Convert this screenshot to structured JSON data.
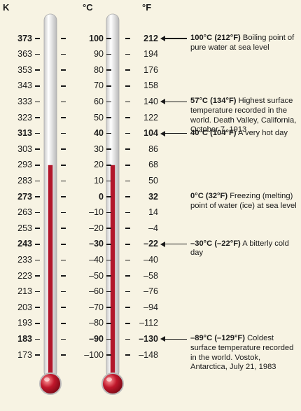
{
  "headers": {
    "kelvin": "K",
    "celsius": "°C",
    "fahrenheit": "°F"
  },
  "colors": {
    "background": "#f7f3e3",
    "liquid": "#b2172b",
    "tube": "#e6e6e6",
    "text": "#1a1a1a"
  },
  "liquid_level_kelvin": 293,
  "rows": [
    {
      "k": "373",
      "c": "100",
      "f": "212",
      "bold": true
    },
    {
      "k": "363",
      "c": "90",
      "f": "194",
      "bold": false
    },
    {
      "k": "353",
      "c": "80",
      "f": "176",
      "bold": false
    },
    {
      "k": "343",
      "c": "70",
      "f": "158",
      "bold": false
    },
    {
      "k": "333",
      "c": "60",
      "f": "140",
      "bold": false
    },
    {
      "k": "323",
      "c": "50",
      "f": "122",
      "bold": false
    },
    {
      "k": "313",
      "c": "40",
      "f": "104",
      "bold": true
    },
    {
      "k": "303",
      "c": "30",
      "f": "86",
      "bold": false
    },
    {
      "k": "293",
      "c": "20",
      "f": "68",
      "bold": false
    },
    {
      "k": "283",
      "c": "10",
      "f": "50",
      "bold": false
    },
    {
      "k": "273",
      "c": "0",
      "f": "32",
      "bold": true
    },
    {
      "k": "263",
      "c": "–10",
      "f": "14",
      "bold": false
    },
    {
      "k": "253",
      "c": "–20",
      "f": "–4",
      "bold": false
    },
    {
      "k": "243",
      "c": "–30",
      "f": "–22",
      "bold": true
    },
    {
      "k": "233",
      "c": "–40",
      "f": "–40",
      "bold": false
    },
    {
      "k": "223",
      "c": "–50",
      "f": "–58",
      "bold": false
    },
    {
      "k": "213",
      "c": "–60",
      "f": "–76",
      "bold": false
    },
    {
      "k": "203",
      "c": "–70",
      "f": "–94",
      "bold": false
    },
    {
      "k": "193",
      "c": "–80",
      "f": "–112",
      "bold": false
    },
    {
      "k": "183",
      "c": "–90",
      "f": "–130",
      "bold": true
    },
    {
      "k": "173",
      "c": "–100",
      "f": "–148",
      "bold": false
    }
  ],
  "annotations": [
    {
      "row": 0,
      "arrow": true,
      "head": "100°C (212°F)",
      "body": " Boiling point of pure water at sea level"
    },
    {
      "row": 4,
      "arrow": true,
      "head": "57°C (134°F)",
      "body": " Highest surface temperature recorded in the world. Death Valley, California, October 7, 1913"
    },
    {
      "row": 6,
      "arrow": true,
      "head": "40°C (104°F)",
      "body": " A very hot day"
    },
    {
      "row": 10,
      "arrow": false,
      "head": "0°C (32°F)",
      "body": " Freezing (melting) point of water (ice) at sea level"
    },
    {
      "row": 13,
      "arrow": true,
      "head": "–30°C (–22°F)",
      "body": " A bitterly cold day"
    },
    {
      "row": 19,
      "arrow": true,
      "head": "–89°C (–129°F)",
      "body": " Coldest surface temperature recorded in the world. Vostok, Antarctica, July 21, 1983"
    }
  ]
}
